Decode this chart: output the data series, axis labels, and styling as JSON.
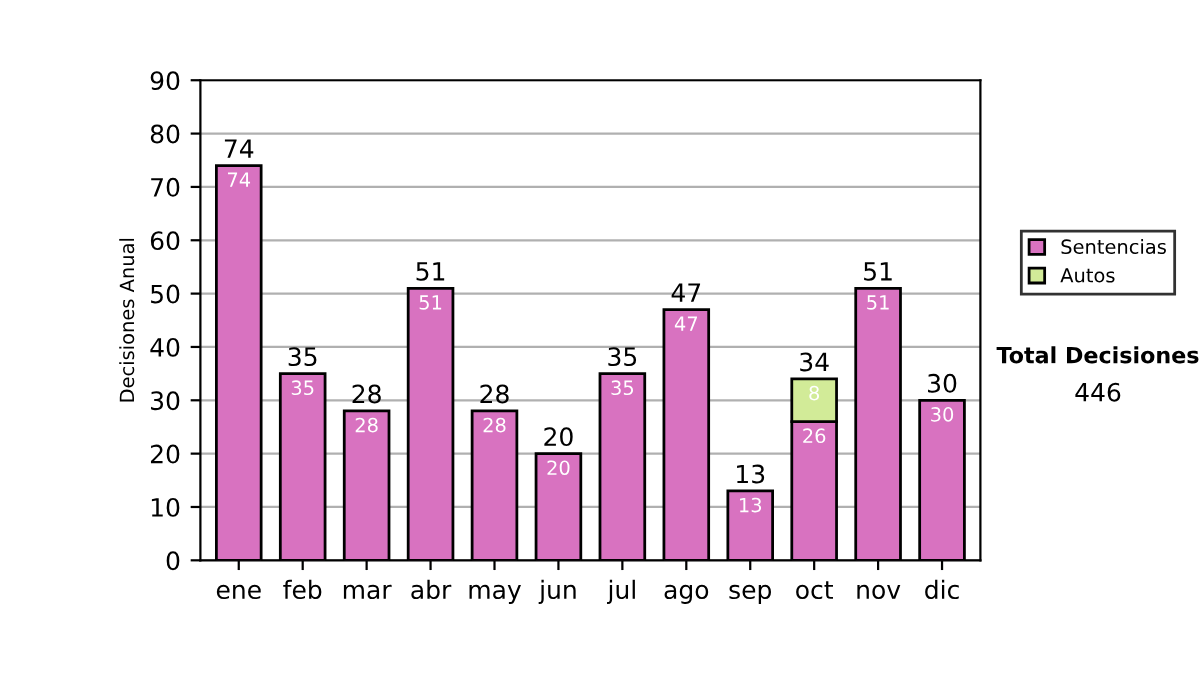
{
  "chart_data": {
    "type": "bar",
    "stacked": true,
    "ylabel": "Decisiones Anual",
    "categories": [
      "ene",
      "feb",
      "mar",
      "abr",
      "may",
      "jun",
      "jul",
      "ago",
      "sep",
      "oct",
      "nov",
      "dic"
    ],
    "series": [
      {
        "name": "Sentencias",
        "color": "#d872c0",
        "values": [
          74,
          35,
          28,
          51,
          28,
          20,
          35,
          47,
          13,
          26,
          51,
          30
        ]
      },
      {
        "name": "Autos",
        "color": "#d2eb98",
        "values": [
          null,
          null,
          null,
          null,
          null,
          null,
          null,
          null,
          null,
          8,
          null,
          null
        ]
      }
    ],
    "data_labels": true,
    "totals": [
      "74",
      "35",
      "28",
      "51",
      "28",
      "20",
      "35",
      "47",
      "13",
      "34",
      "51",
      "30"
    ],
    "ylim": [
      0,
      90
    ],
    "yticks": [
      0,
      10,
      20,
      30,
      40,
      50,
      60,
      70,
      80,
      90
    ],
    "grid": "y",
    "legend": "right",
    "annotations": [
      "Total Decisiones",
      "446"
    ]
  }
}
